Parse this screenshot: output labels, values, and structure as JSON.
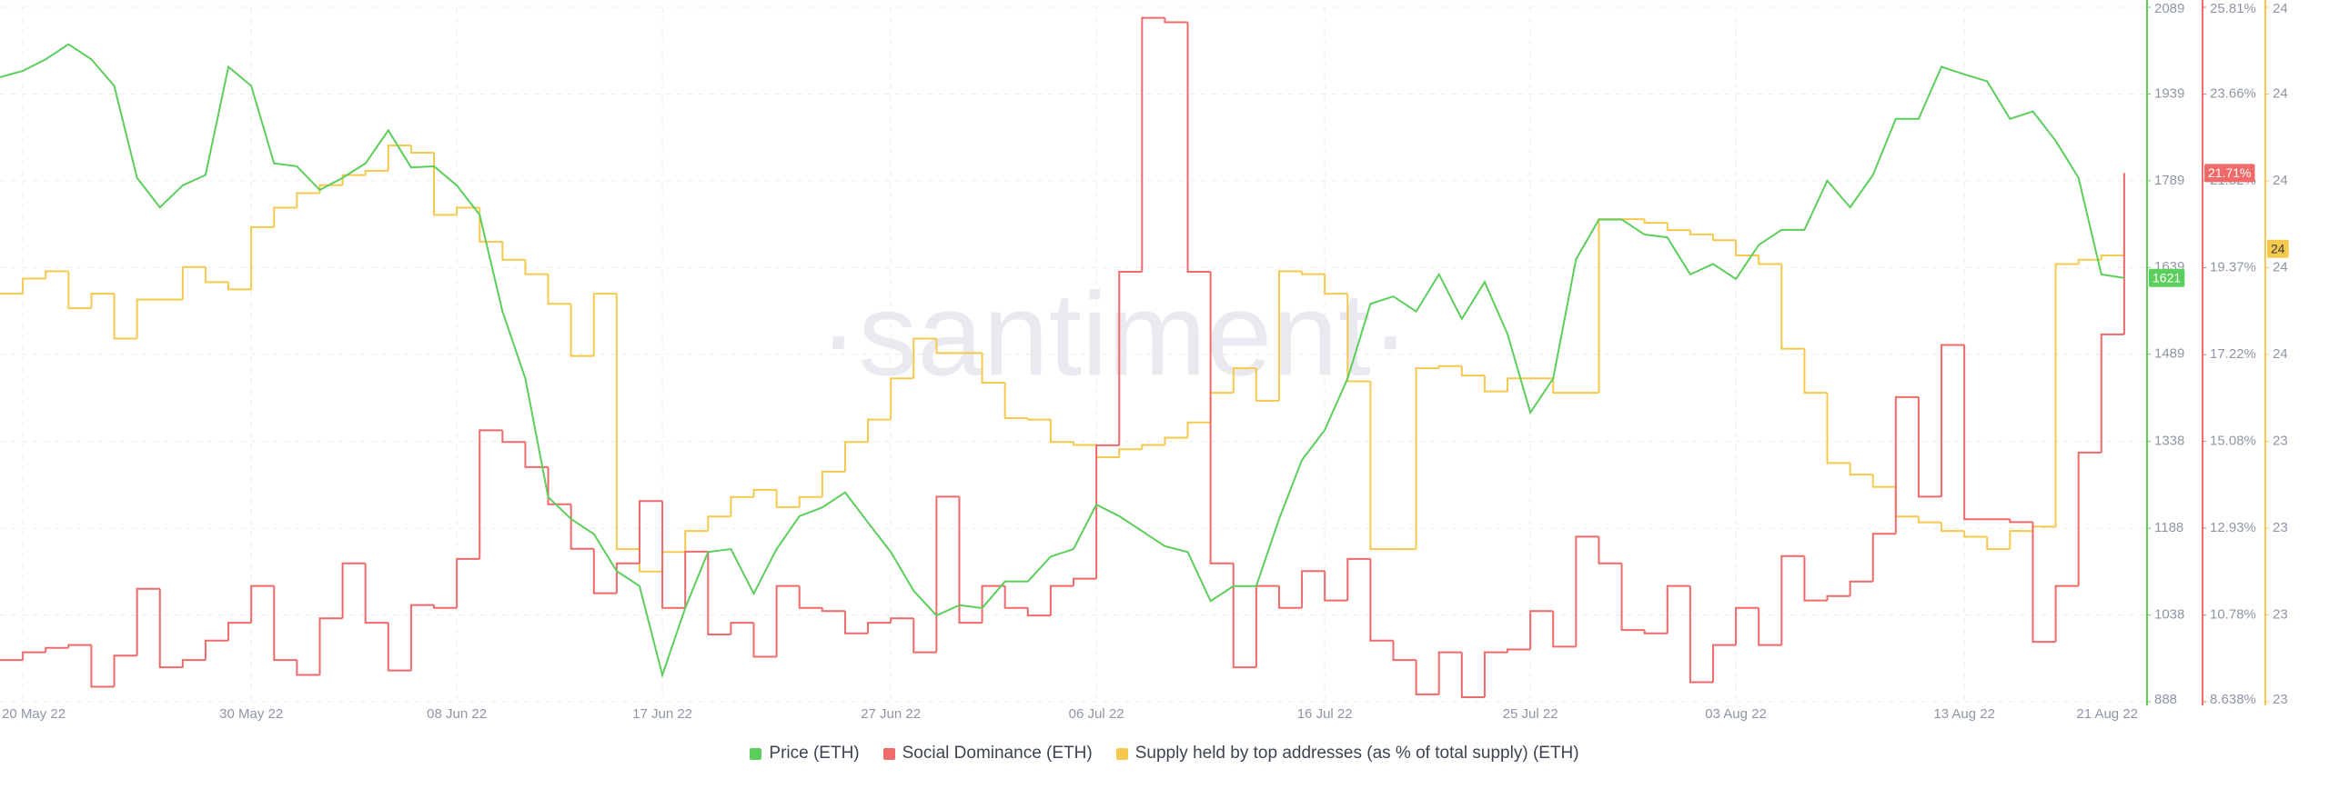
{
  "chart_data": {
    "type": "line",
    "watermark": "·santiment·",
    "x": [
      "2022-05-19",
      "2022-05-20",
      "2022-05-21",
      "2022-05-22",
      "2022-05-23",
      "2022-05-24",
      "2022-05-25",
      "2022-05-26",
      "2022-05-27",
      "2022-05-28",
      "2022-05-29",
      "2022-05-30",
      "2022-05-31",
      "2022-06-01",
      "2022-06-02",
      "2022-06-03",
      "2022-06-04",
      "2022-06-05",
      "2022-06-06",
      "2022-06-07",
      "2022-06-08",
      "2022-06-09",
      "2022-06-10",
      "2022-06-11",
      "2022-06-12",
      "2022-06-13",
      "2022-06-14",
      "2022-06-15",
      "2022-06-16",
      "2022-06-17",
      "2022-06-18",
      "2022-06-19",
      "2022-06-20",
      "2022-06-21",
      "2022-06-22",
      "2022-06-23",
      "2022-06-24",
      "2022-06-25",
      "2022-06-26",
      "2022-06-27",
      "2022-06-28",
      "2022-06-29",
      "2022-06-30",
      "2022-07-01",
      "2022-07-02",
      "2022-07-03",
      "2022-07-04",
      "2022-07-05",
      "2022-07-06",
      "2022-07-07",
      "2022-07-08",
      "2022-07-09",
      "2022-07-10",
      "2022-07-11",
      "2022-07-12",
      "2022-07-13",
      "2022-07-14",
      "2022-07-15",
      "2022-07-16",
      "2022-07-17",
      "2022-07-18",
      "2022-07-19",
      "2022-07-20",
      "2022-07-21",
      "2022-07-22",
      "2022-07-23",
      "2022-07-24",
      "2022-07-25",
      "2022-07-26",
      "2022-07-27",
      "2022-07-28",
      "2022-07-29",
      "2022-07-30",
      "2022-07-31",
      "2022-08-01",
      "2022-08-02",
      "2022-08-03",
      "2022-08-04",
      "2022-08-05",
      "2022-08-06",
      "2022-08-07",
      "2022-08-08",
      "2022-08-09",
      "2022-08-10",
      "2022-08-11",
      "2022-08-12",
      "2022-08-13",
      "2022-08-14",
      "2022-08-15",
      "2022-08-16",
      "2022-08-17",
      "2022-08-18",
      "2022-08-19",
      "2022-08-20"
    ],
    "xlim": [
      "2022-05-19",
      "2022-08-21"
    ],
    "xticks": [
      {
        "value": "2022-05-20",
        "label": "20 May 22"
      },
      {
        "value": "2022-05-30",
        "label": "30 May 22"
      },
      {
        "value": "2022-06-08",
        "label": "08 Jun 22"
      },
      {
        "value": "2022-06-17",
        "label": "17 Jun 22"
      },
      {
        "value": "2022-06-27",
        "label": "27 Jun 22"
      },
      {
        "value": "2022-07-06",
        "label": "06 Jul 22"
      },
      {
        "value": "2022-07-16",
        "label": "16 Jul 22"
      },
      {
        "value": "2022-07-25",
        "label": "25 Jul 22"
      },
      {
        "value": "2022-08-03",
        "label": "03 Aug 22"
      },
      {
        "value": "2022-08-13",
        "label": "13 Aug 22"
      },
      {
        "value": "2022-08-21",
        "label": "21 Aug 22"
      }
    ],
    "ylim": [
      888,
      2089
    ],
    "yticks": [
      888,
      1038,
      1188,
      1338,
      1489,
      1639,
      1789,
      1939,
      2089
    ],
    "y2lim": [
      8.638,
      25.81
    ],
    "y2ticks": [
      {
        "value": 8.638,
        "label": "8.638%"
      },
      {
        "value": 10.78,
        "label": "10.78%"
      },
      {
        "value": 12.93,
        "label": "12.93%"
      },
      {
        "value": 15.08,
        "label": "15.08%"
      },
      {
        "value": 17.22,
        "label": "17.22%"
      },
      {
        "value": 19.37,
        "label": "19.37%"
      },
      {
        "value": 21.52,
        "label": "21.52%"
      },
      {
        "value": 23.66,
        "label": "23.66%"
      },
      {
        "value": 25.81,
        "label": "25.81%"
      }
    ],
    "y3lim": [
      23.1,
      24.06
    ],
    "y3ticks": [
      {
        "value": 23.1,
        "label": "23"
      },
      {
        "value": 23.22,
        "label": "23"
      },
      {
        "value": 23.34,
        "label": "23"
      },
      {
        "value": 23.46,
        "label": "23"
      },
      {
        "value": 23.58,
        "label": "24"
      },
      {
        "value": 23.7,
        "label": "24"
      },
      {
        "value": 23.82,
        "label": "24"
      },
      {
        "value": 23.94,
        "label": "24"
      },
      {
        "value": 24.06,
        "label": "24"
      }
    ],
    "grid": true,
    "series": [
      {
        "name": "Price (ETH)",
        "color": "#5cce5c",
        "axis": "y",
        "line_style": "line",
        "values": [
          1968,
          1979,
          1999,
          2025,
          1999,
          1953,
          1794,
          1743,
          1781,
          1799,
          1986,
          1953,
          1819,
          1814,
          1773,
          1794,
          1819,
          1876,
          1812,
          1814,
          1781,
          1730,
          1563,
          1447,
          1242,
          1204,
          1178,
          1114,
          1088,
          934,
          1050,
          1147,
          1152,
          1075,
          1152,
          1209,
          1224,
          1250,
          1198,
          1147,
          1080,
          1037,
          1055,
          1050,
          1096,
          1096,
          1139,
          1152,
          1229,
          1209,
          1183,
          1157,
          1147,
          1062,
          1088,
          1088,
          1204,
          1306,
          1358,
          1447,
          1576,
          1589,
          1563,
          1627,
          1550,
          1614,
          1524,
          1388,
          1447,
          1653,
          1722,
          1722,
          1696,
          1691,
          1627,
          1645,
          1619,
          1678,
          1704,
          1704,
          1789,
          1743,
          1799,
          1896,
          1896,
          1986,
          1973,
          1961,
          1896,
          1909,
          1858,
          1794,
          1627,
          1621
        ]
      },
      {
        "name": "Social Dominance (ETH)",
        "color": "#f06a6a",
        "axis": "y2",
        "line_style": "step",
        "last_label": "21.71%",
        "values": [
          9.67,
          9.86,
          9.97,
          10.04,
          9.01,
          9.78,
          11.43,
          9.49,
          9.67,
          10.15,
          10.59,
          11.5,
          9.67,
          9.3,
          10.7,
          12.06,
          10.59,
          9.41,
          11.03,
          10.96,
          12.17,
          15.35,
          15.06,
          14.44,
          13.52,
          12.42,
          11.32,
          12.06,
          13.6,
          10.96,
          12.35,
          10.3,
          10.59,
          9.75,
          11.5,
          10.96,
          10.88,
          10.33,
          10.59,
          10.7,
          9.86,
          13.71,
          10.59,
          11.5,
          10.96,
          10.77,
          11.5,
          11.68,
          14.98,
          19.27,
          25.55,
          25.44,
          19.27,
          12.06,
          9.49,
          11.5,
          10.96,
          11.87,
          11.14,
          12.17,
          10.15,
          9.67,
          8.82,
          9.86,
          8.75,
          9.86,
          9.93,
          10.88,
          10.0,
          12.72,
          12.06,
          10.41,
          10.33,
          11.5,
          9.12,
          10.04,
          10.96,
          10.04,
          12.24,
          11.14,
          11.25,
          11.61,
          12.79,
          16.17,
          13.71,
          17.46,
          13.15,
          13.15,
          13.08,
          10.12,
          11.5,
          14.8,
          17.72,
          21.71
        ]
      },
      {
        "name": "Supply held by top addresses (as % of total supply) (ETH)",
        "color": "#f5c84e",
        "axis": "y3",
        "line_style": "step",
        "last_label": "24",
        "values": [
          23.664,
          23.685,
          23.695,
          23.644,
          23.664,
          23.602,
          23.656,
          23.656,
          23.701,
          23.68,
          23.67,
          23.756,
          23.783,
          23.803,
          23.814,
          23.828,
          23.834,
          23.869,
          23.859,
          23.773,
          23.783,
          23.736,
          23.711,
          23.691,
          23.65,
          23.578,
          23.664,
          23.311,
          23.28,
          23.307,
          23.336,
          23.356,
          23.383,
          23.393,
          23.369,
          23.383,
          23.418,
          23.459,
          23.49,
          23.547,
          23.602,
          23.582,
          23.582,
          23.541,
          23.492,
          23.49,
          23.459,
          23.455,
          23.438,
          23.449,
          23.455,
          23.465,
          23.486,
          23.527,
          23.561,
          23.516,
          23.695,
          23.691,
          23.664,
          23.543,
          23.311,
          23.311,
          23.561,
          23.564,
          23.551,
          23.529,
          23.547,
          23.547,
          23.527,
          23.527,
          23.767,
          23.767,
          23.762,
          23.752,
          23.746,
          23.738,
          23.717,
          23.705,
          23.588,
          23.527,
          23.43,
          23.414,
          23.397,
          23.356,
          23.348,
          23.336,
          23.328,
          23.311,
          23.336,
          23.342,
          23.705,
          23.711,
          23.717,
          23.726
        ]
      }
    ]
  }
}
